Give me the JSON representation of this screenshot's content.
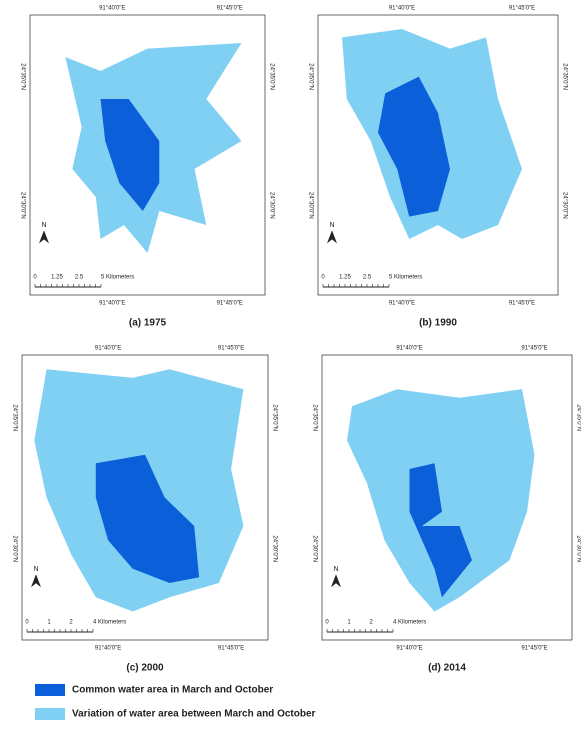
{
  "panels": [
    {
      "caption": "(a) 1975",
      "top_labels": [
        "91°40'0\"E",
        "91°45'0\"E"
      ],
      "bottom_labels": [
        "91°40'0\"E",
        "91°45'0\"E"
      ],
      "left_labels": [
        "24°35'0\"N",
        "24°30'0\"N"
      ],
      "right_labels": [
        "24°35'0\"N",
        "24°30'0\"N"
      ],
      "north": "N",
      "scale_labels": [
        "0",
        "1.25",
        "2.5",
        "5 Kilometers"
      ]
    },
    {
      "caption": "(b) 1990",
      "top_labels": [
        "91°40'0\"E",
        "91°45'0\"E"
      ],
      "bottom_labels": [
        "91°40'0\"E",
        "91°45'0\"E"
      ],
      "left_labels": [
        "24°35'0\"N",
        "24°30'0\"N"
      ],
      "right_labels": [
        "24°35'0\"N",
        "24°30'0\"N"
      ],
      "north": "N",
      "scale_labels": [
        "0",
        "1.25",
        "2.5",
        "5 Kilometers"
      ]
    },
    {
      "caption": "(c) 2000",
      "top_labels": [
        "91°40'0\"E",
        "91°45'0\"E"
      ],
      "bottom_labels": [
        "91°40'0\"E",
        "91°45'0\"E"
      ],
      "left_labels": [
        "24°35'0\"N",
        "24°30'0\"N"
      ],
      "right_labels": [
        "24°35'0\"N",
        "24°30'0\"N"
      ],
      "north": "N",
      "scale_labels": [
        "0",
        "1",
        "2",
        "4 Kilometers"
      ]
    },
    {
      "caption": "(d) 2014",
      "top_labels": [
        "91°40'0\"E",
        "91°45'0\"E"
      ],
      "bottom_labels": [
        "91°40'0\"E",
        "91°45'0\"E"
      ],
      "left_labels": [
        "24°35'0\"N",
        "24°30'0\"N"
      ],
      "right_labels": [
        "24°35'0\"N",
        "24°30'0\"N"
      ],
      "north": "N",
      "scale_labels": [
        "0",
        "1",
        "2",
        "4 Kilometers"
      ]
    }
  ],
  "legend": [
    {
      "label": "Common water area in March and October",
      "color": "#0b5fd8"
    },
    {
      "label": "Variation of water area between March and October",
      "color": "#80d0f4"
    }
  ]
}
